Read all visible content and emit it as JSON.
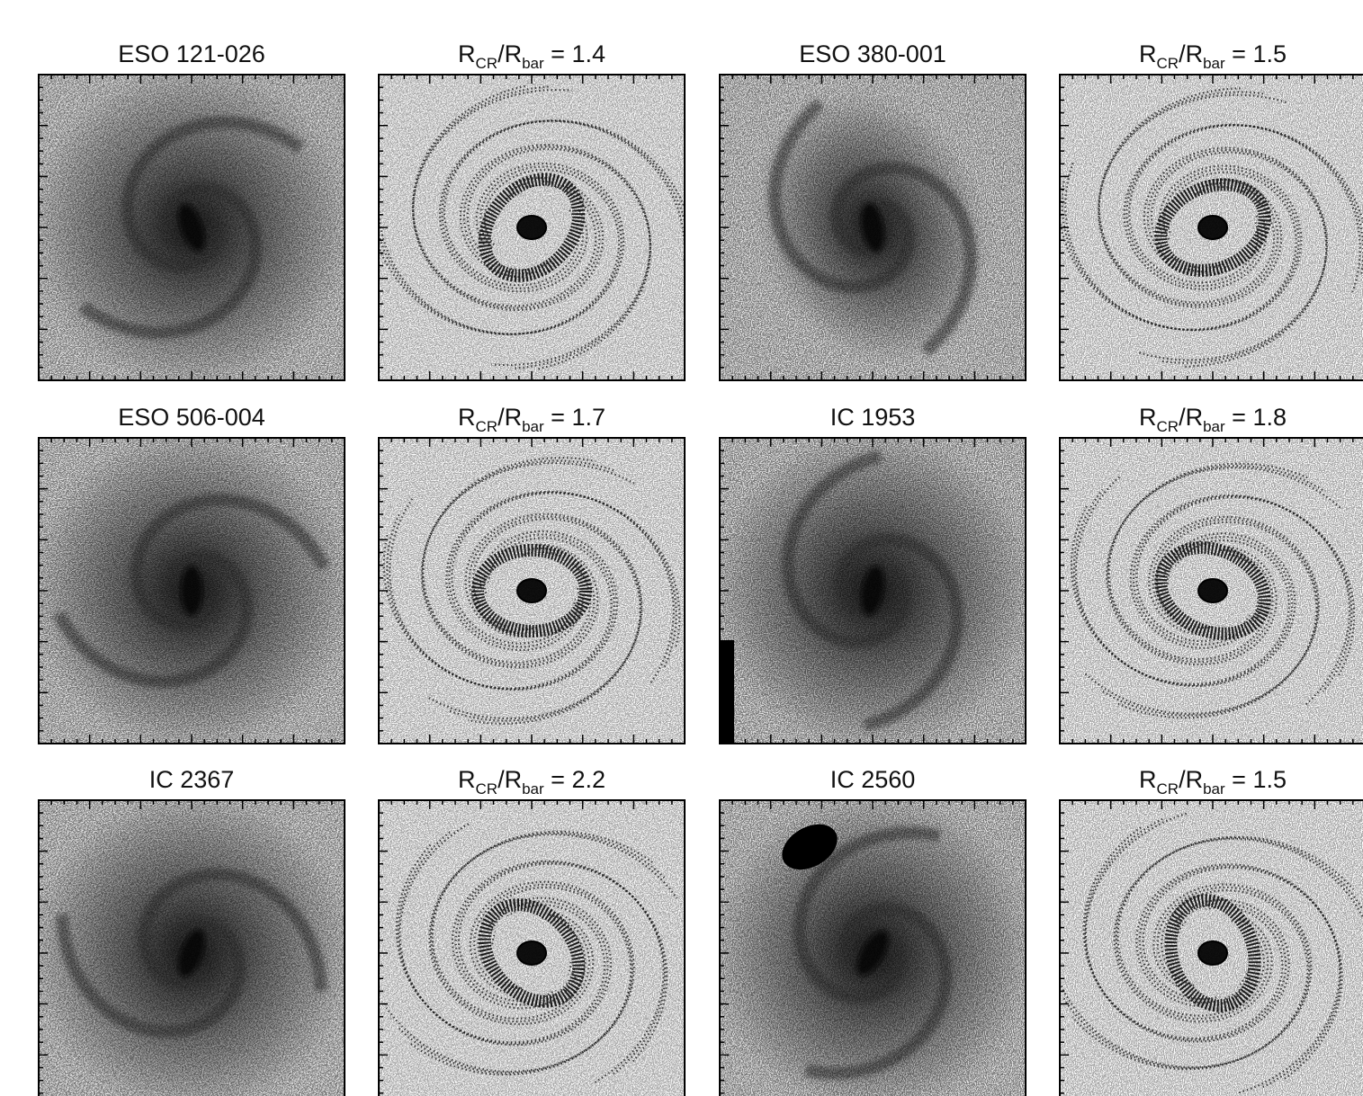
{
  "panels": [
    {
      "title": "ESO 121-026"
    },
    {
      "ratio": {
        "r": "R",
        "cr": "CR",
        "slash": "/R",
        "bar": "bar",
        "eq": " = ",
        "value": 1.4
      }
    },
    {
      "title": "ESO 380-001"
    },
    {
      "ratio": {
        "r": "R",
        "cr": "CR",
        "slash": "/R",
        "bar": "bar",
        "eq": " = ",
        "value": 1.5
      }
    },
    {
      "title": "ESO 506-004"
    },
    {
      "ratio": {
        "r": "R",
        "cr": "CR",
        "slash": "/R",
        "bar": "bar",
        "eq": " = ",
        "value": 1.7
      }
    },
    {
      "title": "IC 1953"
    },
    {
      "ratio": {
        "r": "R",
        "cr": "CR",
        "slash": "/R",
        "bar": "bar",
        "eq": " = ",
        "value": 1.8
      }
    },
    {
      "title": "IC 2367"
    },
    {
      "ratio": {
        "r": "R",
        "cr": "CR",
        "slash": "/R",
        "bar": "bar",
        "eq": " = ",
        "value": 2.2
      }
    },
    {
      "title": "IC 2560"
    },
    {
      "ratio": {
        "r": "R",
        "cr": "CR",
        "slash": "/R",
        "bar": "bar",
        "eq": " = ",
        "value": 1.5
      }
    }
  ]
}
